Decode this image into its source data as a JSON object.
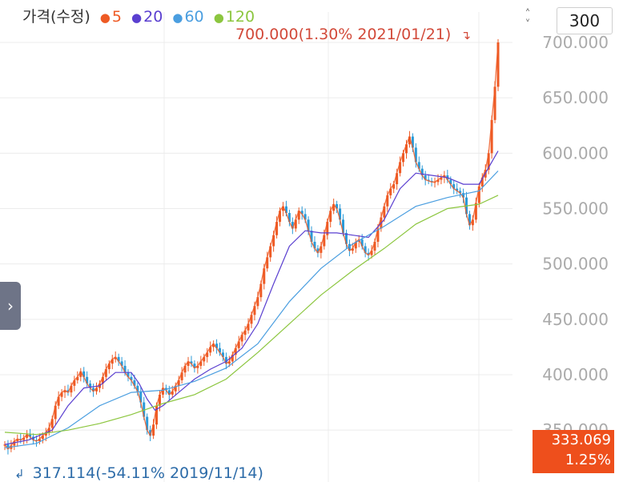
{
  "legend": {
    "title": "가격(수정)",
    "ma": [
      {
        "label": "5",
        "color": "#ee5a24"
      },
      {
        "label": "20",
        "color": "#5a3fd0"
      },
      {
        "label": "60",
        "color": "#4a9ee0"
      },
      {
        "label": "120",
        "color": "#8cc63f"
      }
    ]
  },
  "controls": {
    "stepper_up": "˄",
    "stepper_down": "˅",
    "period": "300",
    "side_tab_icon": "chevron-right-icon",
    "side_tab_glyph": "›"
  },
  "annotations": {
    "high": "700.000(1.30% 2021/01/21)",
    "high_arrow": "↴",
    "low_arrow": "↲",
    "low": "317.114(-54.11% 2019/11/14)"
  },
  "current": {
    "price": "333.069",
    "change": "1.25%"
  },
  "chart_data": {
    "type": "candlestick",
    "title": "",
    "y_ticks": [
      "700.000",
      "650.000",
      "600.000",
      "550.000",
      "500.000",
      "450.000",
      "400.000",
      "350.000"
    ],
    "ylim": [
      330,
      712
    ],
    "grid": true,
    "colors": {
      "up": "#ee5a24",
      "down": "#2a9ad8",
      "ma5": "#ee5a24",
      "ma20": "#5a3fd0",
      "ma60": "#4a9ee0",
      "ma120": "#8cc63f"
    },
    "series": [
      {
        "name": "가격(수정)",
        "points": [
          [
            0,
            337
          ],
          [
            4,
            333
          ],
          [
            8,
            336
          ],
          [
            12,
            340
          ],
          [
            16,
            342
          ],
          [
            20,
            341
          ],
          [
            24,
            343
          ],
          [
            28,
            346
          ],
          [
            32,
            344
          ],
          [
            36,
            341
          ],
          [
            40,
            340
          ],
          [
            44,
            342
          ],
          [
            48,
            345
          ],
          [
            52,
            348
          ],
          [
            56,
            352
          ],
          [
            60,
            360
          ],
          [
            64,
            372
          ],
          [
            68,
            380
          ],
          [
            72,
            384
          ],
          [
            76,
            386
          ],
          [
            80,
            384
          ],
          [
            84,
            390
          ],
          [
            88,
            395
          ],
          [
            92,
            398
          ],
          [
            96,
            403
          ],
          [
            100,
            398
          ],
          [
            104,
            392
          ],
          [
            108,
            388
          ],
          [
            112,
            385
          ],
          [
            116,
            388
          ],
          [
            120,
            392
          ],
          [
            124,
            398
          ],
          [
            128,
            405
          ],
          [
            132,
            410
          ],
          [
            136,
            414
          ],
          [
            140,
            416
          ],
          [
            144,
            412
          ],
          [
            148,
            408
          ],
          [
            152,
            402
          ],
          [
            156,
            398
          ],
          [
            160,
            395
          ],
          [
            164,
            390
          ],
          [
            168,
            385
          ],
          [
            172,
            375
          ],
          [
            176,
            362
          ],
          [
            180,
            350
          ],
          [
            184,
            345
          ],
          [
            188,
            355
          ],
          [
            192,
            372
          ],
          [
            196,
            382
          ],
          [
            200,
            388
          ],
          [
            204,
            386
          ],
          [
            208,
            382
          ],
          [
            212,
            385
          ],
          [
            216,
            390
          ],
          [
            220,
            395
          ],
          [
            224,
            402
          ],
          [
            228,
            408
          ],
          [
            232,
            412
          ],
          [
            236,
            410
          ],
          [
            240,
            406
          ],
          [
            244,
            408
          ],
          [
            248,
            412
          ],
          [
            252,
            416
          ],
          [
            256,
            420
          ],
          [
            260,
            425
          ],
          [
            264,
            428
          ],
          [
            268,
            424
          ],
          [
            272,
            420
          ],
          [
            276,
            416
          ],
          [
            280,
            410
          ],
          [
            284,
            412
          ],
          [
            288,
            418
          ],
          [
            292,
            424
          ],
          [
            296,
            430
          ],
          [
            300,
            436
          ],
          [
            304,
            440
          ],
          [
            308,
            446
          ],
          [
            312,
            454
          ],
          [
            316,
            462
          ],
          [
            320,
            470
          ],
          [
            324,
            482
          ],
          [
            328,
            496
          ],
          [
            332,
            506
          ],
          [
            336,
            516
          ],
          [
            340,
            526
          ],
          [
            344,
            538
          ],
          [
            348,
            548
          ],
          [
            352,
            552
          ],
          [
            356,
            546
          ],
          [
            360,
            538
          ],
          [
            364,
            532
          ],
          [
            368,
            540
          ],
          [
            372,
            548
          ],
          [
            376,
            545
          ],
          [
            380,
            540
          ],
          [
            384,
            530
          ],
          [
            388,
            520
          ],
          [
            392,
            514
          ],
          [
            396,
            510
          ],
          [
            400,
            516
          ],
          [
            404,
            526
          ],
          [
            408,
            538
          ],
          [
            412,
            548
          ],
          [
            416,
            554
          ],
          [
            420,
            550
          ],
          [
            424,
            540
          ],
          [
            428,
            528
          ],
          [
            432,
            518
          ],
          [
            436,
            512
          ],
          [
            440,
            514
          ],
          [
            444,
            520
          ],
          [
            448,
            522
          ],
          [
            452,
            516
          ],
          [
            456,
            510
          ],
          [
            460,
            508
          ],
          [
            464,
            512
          ],
          [
            468,
            520
          ],
          [
            472,
            532
          ],
          [
            476,
            542
          ],
          [
            480,
            552
          ],
          [
            484,
            562
          ],
          [
            488,
            568
          ],
          [
            492,
            572
          ],
          [
            496,
            582
          ],
          [
            500,
            592
          ],
          [
            504,
            600
          ],
          [
            508,
            608
          ],
          [
            512,
            615
          ],
          [
            516,
            605
          ],
          [
            520,
            592
          ],
          [
            524,
            586
          ],
          [
            528,
            580
          ],
          [
            532,
            576
          ],
          [
            536,
            575
          ],
          [
            540,
            574
          ],
          [
            544,
            574
          ],
          [
            548,
            576
          ],
          [
            552,
            578
          ],
          [
            556,
            580
          ],
          [
            560,
            576
          ],
          [
            564,
            572
          ],
          [
            568,
            568
          ],
          [
            572,
            566
          ],
          [
            576,
            564
          ],
          [
            580,
            560
          ],
          [
            584,
            545
          ],
          [
            588,
            535
          ],
          [
            592,
            540
          ],
          [
            596,
            555
          ],
          [
            600,
            570
          ],
          [
            604,
            578
          ],
          [
            608,
            585
          ],
          [
            612,
            600
          ],
          [
            616,
            630
          ],
          [
            620,
            660
          ],
          [
            624,
            700
          ]
        ]
      },
      {
        "name": "20",
        "points": [
          [
            0,
            337
          ],
          [
            30,
            341
          ],
          [
            60,
            350
          ],
          [
            80,
            372
          ],
          [
            100,
            388
          ],
          [
            120,
            390
          ],
          [
            140,
            402
          ],
          [
            160,
            402
          ],
          [
            170,
            392
          ],
          [
            180,
            378
          ],
          [
            190,
            368
          ],
          [
            200,
            372
          ],
          [
            220,
            384
          ],
          [
            240,
            396
          ],
          [
            260,
            405
          ],
          [
            280,
            412
          ],
          [
            300,
            424
          ],
          [
            320,
            446
          ],
          [
            340,
            482
          ],
          [
            360,
            516
          ],
          [
            380,
            530
          ],
          [
            400,
            528
          ],
          [
            420,
            528
          ],
          [
            440,
            526
          ],
          [
            460,
            524
          ],
          [
            480,
            540
          ],
          [
            500,
            568
          ],
          [
            520,
            582
          ],
          [
            540,
            580
          ],
          [
            560,
            578
          ],
          [
            580,
            572
          ],
          [
            600,
            572
          ],
          [
            624,
            602
          ]
        ]
      },
      {
        "name": "60",
        "points": [
          [
            0,
            334
          ],
          [
            40,
            338
          ],
          [
            80,
            352
          ],
          [
            120,
            372
          ],
          [
            160,
            384
          ],
          [
            200,
            386
          ],
          [
            240,
            394
          ],
          [
            280,
            406
          ],
          [
            320,
            428
          ],
          [
            360,
            466
          ],
          [
            400,
            496
          ],
          [
            440,
            518
          ],
          [
            480,
            534
          ],
          [
            520,
            552
          ],
          [
            560,
            560
          ],
          [
            600,
            566
          ],
          [
            624,
            584
          ]
        ]
      },
      {
        "name": "120",
        "points": [
          [
            0,
            348
          ],
          [
            40,
            346
          ],
          [
            80,
            350
          ],
          [
            120,
            356
          ],
          [
            160,
            364
          ],
          [
            200,
            374
          ],
          [
            240,
            382
          ],
          [
            280,
            396
          ],
          [
            320,
            420
          ],
          [
            360,
            446
          ],
          [
            400,
            472
          ],
          [
            440,
            494
          ],
          [
            480,
            514
          ],
          [
            520,
            536
          ],
          [
            560,
            550
          ],
          [
            600,
            554
          ],
          [
            624,
            562
          ]
        ]
      }
    ]
  }
}
